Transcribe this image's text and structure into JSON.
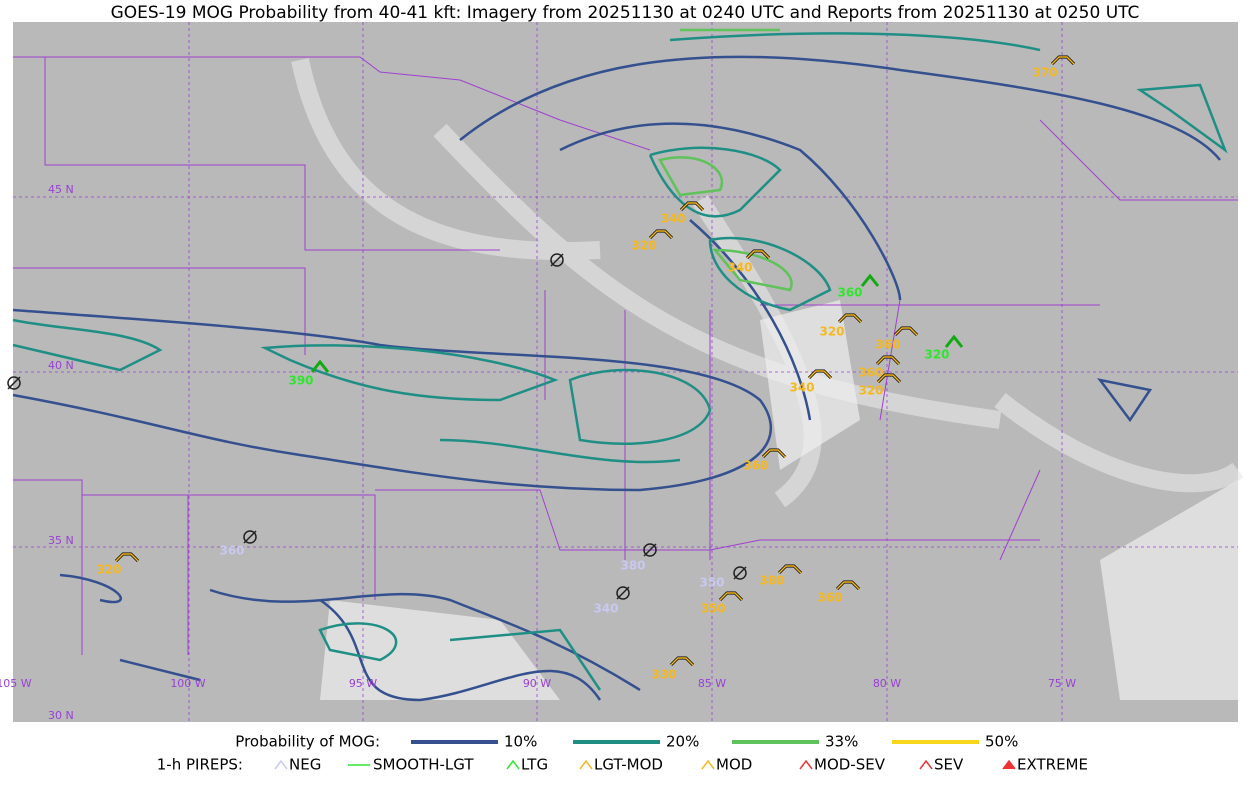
{
  "title": "GOES-19 MOG Probability from 40-41 kft: Imagery from 20251130 at 0240 UTC and Reports from 20251130 at 0250 UTC",
  "lat_labels": [
    "45 N",
    "40 N",
    "35 N",
    "30 N"
  ],
  "lon_labels": [
    "105 W",
    "100 W",
    "95 W",
    "90 W",
    "85 W",
    "80 W",
    "75 W"
  ],
  "reports": [
    "370",
    "340",
    "320",
    "340",
    "360",
    "320",
    "360",
    "320",
    "360",
    "320",
    "340",
    "390",
    "360",
    "320",
    "360",
    "380",
    "340",
    "350",
    "350",
    "380",
    "360",
    "330"
  ],
  "legend": {
    "probability_title": "Probability of MOG:",
    "probability": [
      "10%",
      "20%",
      "33%",
      "50%"
    ],
    "pireps_title": "1-h PIREPS:",
    "pireps": [
      "NEG",
      "SMOOTH-LGT",
      "LTG",
      "LGT-MOD",
      "MOD",
      "MOD-SEV",
      "SEV",
      "EXTREME"
    ]
  }
}
